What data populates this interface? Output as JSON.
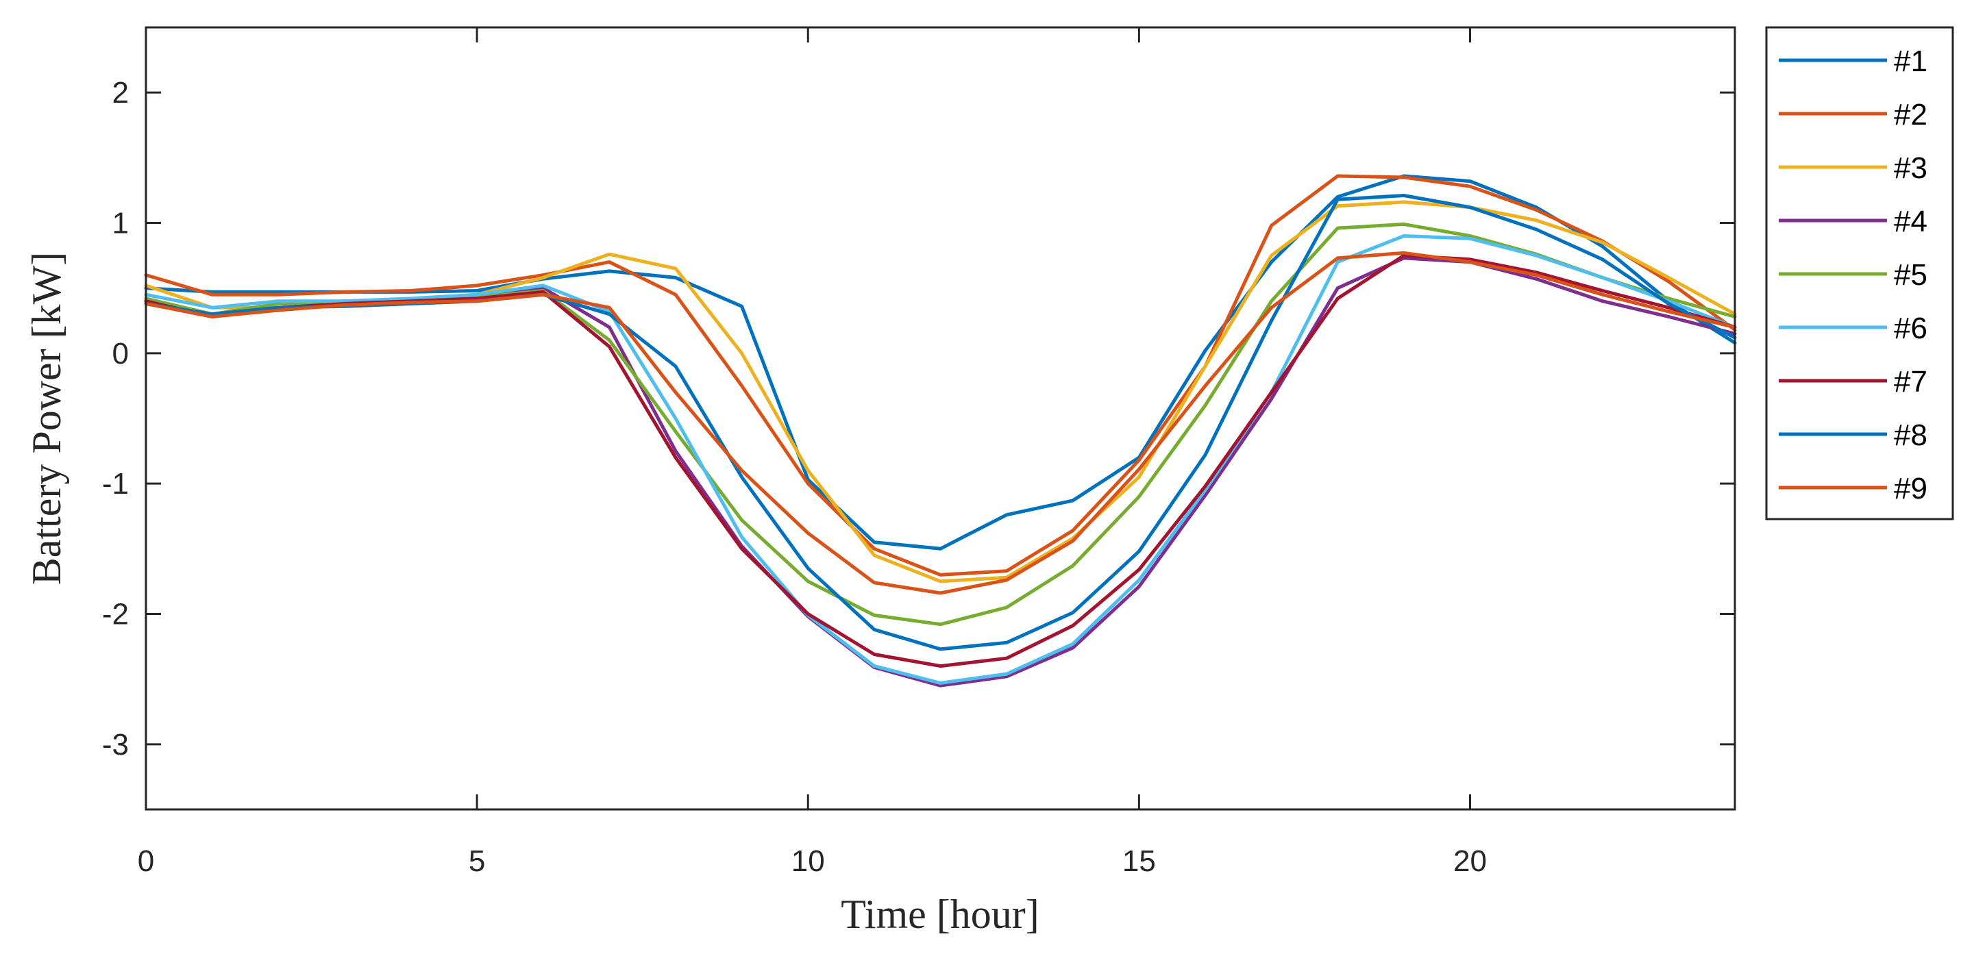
{
  "chart_data": {
    "type": "line",
    "xlabel": "Time [hour]",
    "ylabel": "Battery Power [kW]",
    "xlim": [
      0,
      24
    ],
    "ylim": [
      -3.5,
      2.5
    ],
    "xticks": [
      0,
      5,
      10,
      15,
      20
    ],
    "yticks": [
      2,
      1,
      0,
      -1,
      -2,
      -3
    ],
    "xtick_labels": [
      "0",
      "5",
      "10",
      "15",
      "20"
    ],
    "ytick_labels": [
      "2",
      "1",
      "0",
      "-1",
      "-2",
      "-3"
    ],
    "grid": false,
    "legend_position": "outside-top-right",
    "x": [
      0,
      1,
      2,
      3,
      4,
      5,
      6,
      7,
      8,
      9,
      10,
      11,
      12,
      13,
      14,
      15,
      16,
      17,
      18,
      19,
      20,
      21,
      22,
      23,
      24
    ],
    "series": [
      {
        "name": "#1",
        "color": "#0072BD",
        "values": [
          0.5,
          0.47,
          0.47,
          0.47,
          0.47,
          0.48,
          0.57,
          0.63,
          0.58,
          0.36,
          -0.97,
          -1.45,
          -1.5,
          -1.24,
          -1.13,
          -0.8,
          0.02,
          0.7,
          1.2,
          1.36,
          1.32,
          1.12,
          0.82,
          0.4,
          0.08
        ]
      },
      {
        "name": "#2",
        "color": "#D95319",
        "values": [
          0.6,
          0.45,
          0.45,
          0.47,
          0.48,
          0.52,
          0.6,
          0.7,
          0.45,
          -0.25,
          -1.0,
          -1.5,
          -1.7,
          -1.67,
          -1.36,
          -0.82,
          -0.1,
          0.98,
          1.36,
          1.35,
          1.28,
          1.1,
          0.86,
          0.55,
          0.18
        ]
      },
      {
        "name": "#3",
        "color": "#EDB120",
        "values": [
          0.52,
          0.35,
          0.35,
          0.38,
          0.4,
          0.45,
          0.58,
          0.76,
          0.65,
          0.0,
          -0.9,
          -1.55,
          -1.75,
          -1.72,
          -1.42,
          -0.95,
          -0.1,
          0.75,
          1.13,
          1.16,
          1.12,
          1.02,
          0.85,
          0.58,
          0.3
        ]
      },
      {
        "name": "#4",
        "color": "#7E2F8E",
        "values": [
          0.4,
          0.3,
          0.35,
          0.38,
          0.4,
          0.42,
          0.5,
          0.2,
          -0.75,
          -1.48,
          -2.02,
          -2.41,
          -2.55,
          -2.48,
          -2.26,
          -1.79,
          -1.09,
          -0.35,
          0.5,
          0.73,
          0.7,
          0.57,
          0.4,
          0.28,
          0.15
        ]
      },
      {
        "name": "#5",
        "color": "#77AC30",
        "values": [
          0.42,
          0.3,
          0.38,
          0.4,
          0.41,
          0.43,
          0.48,
          0.1,
          -0.6,
          -1.28,
          -1.75,
          -2.01,
          -2.08,
          -1.95,
          -1.63,
          -1.1,
          -0.4,
          0.4,
          0.96,
          0.99,
          0.9,
          0.76,
          0.58,
          0.42,
          0.28
        ]
      },
      {
        "name": "#6",
        "color": "#4DBEEE",
        "values": [
          0.45,
          0.35,
          0.4,
          0.4,
          0.42,
          0.45,
          0.52,
          0.32,
          -0.5,
          -1.41,
          -2.01,
          -2.4,
          -2.53,
          -2.46,
          -2.23,
          -1.74,
          -1.05,
          -0.3,
          0.7,
          0.9,
          0.88,
          0.75,
          0.58,
          0.4,
          0.2
        ]
      },
      {
        "name": "#7",
        "color": "#A2142F",
        "values": [
          0.4,
          0.28,
          0.35,
          0.38,
          0.4,
          0.42,
          0.47,
          0.05,
          -0.8,
          -1.5,
          -2.0,
          -2.31,
          -2.4,
          -2.34,
          -2.09,
          -1.66,
          -1.02,
          -0.3,
          0.42,
          0.75,
          0.72,
          0.62,
          0.48,
          0.35,
          0.2
        ]
      },
      {
        "name": "#8",
        "color": "#0072BD",
        "values": [
          0.38,
          0.3,
          0.35,
          0.36,
          0.38,
          0.4,
          0.45,
          0.3,
          -0.1,
          -0.95,
          -1.65,
          -2.12,
          -2.27,
          -2.22,
          -1.99,
          -1.52,
          -0.78,
          0.25,
          1.18,
          1.21,
          1.12,
          0.95,
          0.72,
          0.38,
          0.12
        ]
      },
      {
        "name": "#9",
        "color": "#D95319",
        "values": [
          0.38,
          0.28,
          0.33,
          0.37,
          0.39,
          0.4,
          0.45,
          0.35,
          -0.3,
          -0.9,
          -1.38,
          -1.76,
          -1.84,
          -1.74,
          -1.44,
          -0.89,
          -0.25,
          0.35,
          0.73,
          0.77,
          0.7,
          0.6,
          0.45,
          0.32,
          0.2
        ]
      }
    ]
  }
}
